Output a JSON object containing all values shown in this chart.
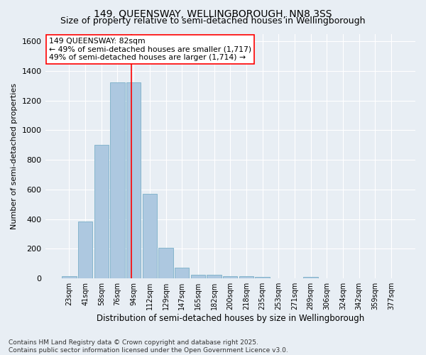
{
  "title": "149, QUEENSWAY, WELLINGBOROUGH, NN8 3SS",
  "subtitle": "Size of property relative to semi-detached houses in Wellingborough",
  "xlabel": "Distribution of semi-detached houses by size in Wellingborough",
  "ylabel": "Number of semi-detached properties",
  "categories": [
    "23sqm",
    "41sqm",
    "58sqm",
    "76sqm",
    "94sqm",
    "112sqm",
    "129sqm",
    "147sqm",
    "165sqm",
    "182sqm",
    "200sqm",
    "218sqm",
    "235sqm",
    "253sqm",
    "271sqm",
    "289sqm",
    "306sqm",
    "324sqm",
    "342sqm",
    "359sqm",
    "377sqm"
  ],
  "values": [
    15,
    385,
    900,
    1320,
    1320,
    570,
    205,
    75,
    25,
    25,
    15,
    15,
    10,
    0,
    0,
    10,
    0,
    0,
    0,
    0,
    0
  ],
  "bar_color": "#adc8e0",
  "bar_edge_color": "#7aafc8",
  "vline_x": 3.85,
  "vline_color": "red",
  "annotation_title": "149 QUEENSWAY: 82sqm",
  "annotation_line2": "← 49% of semi-detached houses are smaller (1,717)",
  "annotation_line3": "49% of semi-detached houses are larger (1,714) →",
  "annotation_box_color": "white",
  "annotation_box_edge_color": "red",
  "ylim": [
    0,
    1650
  ],
  "yticks": [
    0,
    200,
    400,
    600,
    800,
    1000,
    1200,
    1400,
    1600
  ],
  "background_color": "#e8eef4",
  "grid_color": "white",
  "footnote": "Contains HM Land Registry data © Crown copyright and database right 2025.\nContains public sector information licensed under the Open Government Licence v3.0.",
  "title_fontsize": 10,
  "subtitle_fontsize": 9,
  "footnote_fontsize": 6.5
}
